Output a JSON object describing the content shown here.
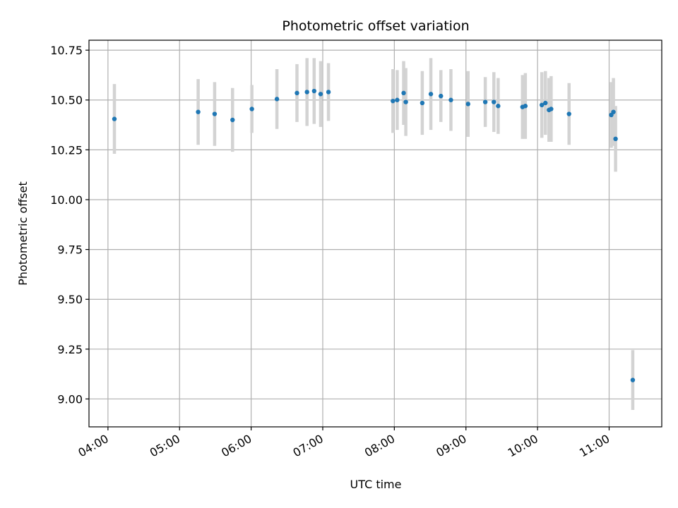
{
  "chart_data": {
    "type": "scatter",
    "title": "Photometric offset variation",
    "xlabel": "UTC time",
    "ylabel": "Photometric offset",
    "x_unit": "hours UTC",
    "xlim": [
      3.735,
      11.735
    ],
    "ylim": [
      8.86,
      10.8
    ],
    "x_ticks": [
      {
        "value": 4,
        "label": "04:00"
      },
      {
        "value": 5,
        "label": "05:00"
      },
      {
        "value": 6,
        "label": "06:00"
      },
      {
        "value": 7,
        "label": "07:00"
      },
      {
        "value": 8,
        "label": "08:00"
      },
      {
        "value": 9,
        "label": "09:00"
      },
      {
        "value": 10,
        "label": "10:00"
      },
      {
        "value": 11,
        "label": "11:00"
      }
    ],
    "y_ticks": [
      {
        "value": 9.0,
        "label": "9.00"
      },
      {
        "value": 9.25,
        "label": "9.25"
      },
      {
        "value": 9.5,
        "label": "9.50"
      },
      {
        "value": 9.75,
        "label": "9.75"
      },
      {
        "value": 10.0,
        "label": "10.00"
      },
      {
        "value": 10.25,
        "label": "10.25"
      },
      {
        "value": 10.5,
        "label": "10.50"
      },
      {
        "value": 10.75,
        "label": "10.75"
      }
    ],
    "grid": true,
    "marker_color": "#1f77b4",
    "errorbar_color": "#d3d3d3",
    "points": [
      {
        "x": 4.09,
        "y": 10.405,
        "err": 0.175
      },
      {
        "x": 5.26,
        "y": 10.44,
        "err": 0.165
      },
      {
        "x": 5.49,
        "y": 10.43,
        "err": 0.16
      },
      {
        "x": 5.74,
        "y": 10.4,
        "err": 0.16
      },
      {
        "x": 6.01,
        "y": 10.455,
        "err": 0.12
      },
      {
        "x": 6.36,
        "y": 10.505,
        "err": 0.15
      },
      {
        "x": 6.64,
        "y": 10.535,
        "err": 0.145
      },
      {
        "x": 6.78,
        "y": 10.54,
        "err": 0.17
      },
      {
        "x": 6.88,
        "y": 10.545,
        "err": 0.165
      },
      {
        "x": 6.97,
        "y": 10.53,
        "err": 0.165
      },
      {
        "x": 7.08,
        "y": 10.54,
        "err": 0.145
      },
      {
        "x": 7.98,
        "y": 10.495,
        "err": 0.16
      },
      {
        "x": 8.04,
        "y": 10.5,
        "err": 0.15
      },
      {
        "x": 8.13,
        "y": 10.535,
        "err": 0.16
      },
      {
        "x": 8.16,
        "y": 10.49,
        "err": 0.17
      },
      {
        "x": 8.39,
        "y": 10.485,
        "err": 0.16
      },
      {
        "x": 8.51,
        "y": 10.53,
        "err": 0.18
      },
      {
        "x": 8.65,
        "y": 10.52,
        "err": 0.13
      },
      {
        "x": 8.79,
        "y": 10.5,
        "err": 0.155
      },
      {
        "x": 9.03,
        "y": 10.48,
        "err": 0.165
      },
      {
        "x": 9.27,
        "y": 10.49,
        "err": 0.125
      },
      {
        "x": 9.39,
        "y": 10.49,
        "err": 0.15
      },
      {
        "x": 9.45,
        "y": 10.47,
        "err": 0.14
      },
      {
        "x": 9.79,
        "y": 10.465,
        "err": 0.16
      },
      {
        "x": 9.83,
        "y": 10.47,
        "err": 0.165
      },
      {
        "x": 10.06,
        "y": 10.475,
        "err": 0.165
      },
      {
        "x": 10.11,
        "y": 10.485,
        "err": 0.16
      },
      {
        "x": 10.16,
        "y": 10.45,
        "err": 0.16
      },
      {
        "x": 10.19,
        "y": 10.455,
        "err": 0.165
      },
      {
        "x": 10.44,
        "y": 10.43,
        "err": 0.155
      },
      {
        "x": 11.03,
        "y": 10.425,
        "err": 0.165
      },
      {
        "x": 11.06,
        "y": 10.44,
        "err": 0.17
      },
      {
        "x": 11.09,
        "y": 10.305,
        "err": 0.165
      },
      {
        "x": 11.33,
        "y": 9.095,
        "err": 0.15
      }
    ]
  }
}
